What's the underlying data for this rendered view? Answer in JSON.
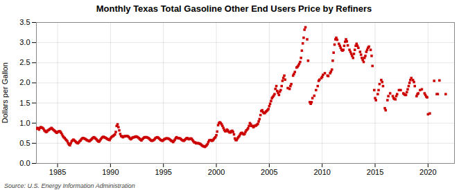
{
  "chart_data": {
    "type": "scatter",
    "title": "Monthly Texas Total Gasoline Other End Users Price by Refiners",
    "ylabel": "Dollars per Gallon",
    "caption": "Source: U.S. Energy Information Administration",
    "color": "#cc0000",
    "marker": "square",
    "grid": true,
    "xlim": [
      1983.0,
      2022.5
    ],
    "ylim": [
      0.0,
      3.5
    ],
    "xticks": [
      1985,
      1990,
      1995,
      2000,
      2005,
      2010,
      2015,
      2020
    ],
    "yticks": [
      {
        "value": 0.0,
        "label": "0.0"
      },
      0.5,
      {
        "value": 1.0,
        "label": "1.0"
      },
      1.5,
      {
        "value": 2.0,
        "label": "2.0"
      },
      2.5,
      {
        "value": 3.0,
        "label": "3.0"
      },
      3.5
    ],
    "x": [
      1983.0,
      1983.08,
      1983.17,
      1983.25,
      1983.33,
      1983.42,
      1983.5,
      1983.58,
      1983.67,
      1983.75,
      1983.83,
      1983.92,
      1984.0,
      1984.08,
      1984.17,
      1984.25,
      1984.33,
      1984.42,
      1984.5,
      1984.58,
      1984.67,
      1984.75,
      1984.83,
      1984.92,
      1985.0,
      1985.08,
      1985.17,
      1985.25,
      1985.33,
      1985.42,
      1985.5,
      1985.58,
      1985.67,
      1985.75,
      1985.83,
      1985.92,
      1986.0,
      1986.08,
      1986.17,
      1986.25,
      1986.33,
      1986.42,
      1986.5,
      1986.58,
      1986.67,
      1986.75,
      1986.83,
      1986.92,
      1987.0,
      1987.08,
      1987.17,
      1987.25,
      1987.33,
      1987.42,
      1987.5,
      1987.58,
      1987.67,
      1987.75,
      1987.83,
      1987.92,
      1988.0,
      1988.08,
      1988.17,
      1988.25,
      1988.33,
      1988.42,
      1988.5,
      1988.58,
      1988.67,
      1988.75,
      1988.83,
      1988.92,
      1989.0,
      1989.08,
      1989.17,
      1989.25,
      1989.33,
      1989.42,
      1989.5,
      1989.58,
      1989.67,
      1989.75,
      1989.83,
      1989.92,
      1990.0,
      1990.08,
      1990.17,
      1990.25,
      1990.33,
      1990.42,
      1990.5,
      1990.58,
      1990.67,
      1990.75,
      1990.83,
      1990.92,
      1991.0,
      1991.08,
      1991.17,
      1991.25,
      1991.33,
      1991.42,
      1991.5,
      1991.58,
      1991.67,
      1991.75,
      1991.83,
      1991.92,
      1992.0,
      1992.08,
      1992.17,
      1992.25,
      1992.33,
      1992.42,
      1992.5,
      1992.58,
      1992.67,
      1992.75,
      1992.83,
      1992.92,
      1993.0,
      1993.08,
      1993.17,
      1993.25,
      1993.33,
      1993.42,
      1993.5,
      1993.58,
      1993.67,
      1993.75,
      1993.83,
      1993.92,
      1994.0,
      1994.08,
      1994.17,
      1994.25,
      1994.33,
      1994.42,
      1994.5,
      1994.58,
      1994.67,
      1994.75,
      1994.83,
      1994.92,
      1995.0,
      1995.08,
      1995.17,
      1995.25,
      1995.33,
      1995.42,
      1995.5,
      1995.58,
      1995.67,
      1995.75,
      1995.83,
      1995.92,
      1996.0,
      1996.08,
      1996.17,
      1996.25,
      1996.33,
      1996.42,
      1996.5,
      1996.58,
      1996.67,
      1996.75,
      1996.83,
      1996.92,
      1997.0,
      1997.08,
      1997.17,
      1997.25,
      1997.33,
      1997.42,
      1997.5,
      1997.58,
      1997.67,
      1997.75,
      1997.83,
      1997.92,
      1998.0,
      1998.08,
      1998.17,
      1998.25,
      1998.33,
      1998.42,
      1998.5,
      1998.58,
      1998.67,
      1998.75,
      1998.83,
      1998.92,
      1999.0,
      1999.08,
      1999.17,
      1999.25,
      1999.33,
      1999.42,
      1999.5,
      1999.58,
      1999.67,
      1999.75,
      1999.83,
      1999.92,
      2000.0,
      2000.08,
      2000.17,
      2000.25,
      2000.33,
      2000.42,
      2000.5,
      2000.58,
      2000.67,
      2000.75,
      2000.83,
      2000.92,
      2001.0,
      2001.08,
      2001.17,
      2001.25,
      2001.33,
      2001.42,
      2001.5,
      2001.58,
      2001.67,
      2001.75,
      2001.83,
      2001.92,
      2002.0,
      2002.08,
      2002.17,
      2002.25,
      2002.33,
      2002.42,
      2002.5,
      2002.58,
      2002.67,
      2002.75,
      2002.83,
      2002.92,
      2003.0,
      2003.08,
      2003.17,
      2003.25,
      2003.33,
      2003.42,
      2003.5,
      2003.58,
      2003.67,
      2003.75,
      2003.83,
      2003.92,
      2004.0,
      2004.08,
      2004.17,
      2004.25,
      2004.33,
      2004.42,
      2004.5,
      2004.58,
      2004.67,
      2004.75,
      2004.83,
      2004.92,
      2005.0,
      2005.08,
      2005.17,
      2005.25,
      2005.33,
      2005.42,
      2005.5,
      2005.58,
      2005.67,
      2005.75,
      2005.83,
      2005.92,
      2006.0,
      2006.08,
      2006.17,
      2006.25,
      2006.33,
      2006.42,
      2006.5,
      2006.75,
      2006.92,
      2007.0,
      2007.08,
      2007.25,
      2007.33,
      2007.42,
      2007.58,
      2007.67,
      2007.75,
      2007.83,
      2007.92,
      2008.0,
      2008.08,
      2008.17,
      2008.25,
      2008.33,
      2008.42,
      2008.58,
      2008.67,
      2008.83,
      2008.92,
      2009.0,
      2009.08,
      2009.25,
      2009.42,
      2009.58,
      2009.67,
      2009.75,
      2009.92,
      2010.0,
      2010.08,
      2010.25,
      2010.5,
      2010.58,
      2010.75,
      2010.83,
      2010.92,
      2011.0,
      2011.08,
      2011.17,
      2011.25,
      2011.33,
      2011.42,
      2011.58,
      2011.67,
      2011.75,
      2011.83,
      2011.92,
      2012.0,
      2012.08,
      2012.17,
      2012.25,
      2012.33,
      2012.42,
      2012.58,
      2012.67,
      2012.75,
      2012.83,
      2012.92,
      2013.0,
      2013.08,
      2013.17,
      2013.25,
      2013.33,
      2013.42,
      2013.58,
      2013.67,
      2013.75,
      2013.83,
      2013.92,
      2014.0,
      2014.08,
      2014.17,
      2014.25,
      2014.33,
      2014.42,
      2014.58,
      2014.67,
      2014.75,
      2014.92,
      2015.0,
      2015.08,
      2015.25,
      2015.33,
      2015.42,
      2015.58,
      2015.67,
      2015.75,
      2015.92,
      2016.0,
      2016.17,
      2016.25,
      2016.42,
      2016.67,
      2016.75,
      2016.83,
      2016.92,
      2017.0,
      2017.08,
      2017.25,
      2017.42,
      2017.67,
      2017.75,
      2017.83,
      2017.92,
      2018.0,
      2018.08,
      2018.17,
      2018.25,
      2018.33,
      2018.42,
      2018.58,
      2018.67,
      2018.75,
      2018.92,
      2019.0,
      2019.08,
      2019.25,
      2019.42,
      2019.67,
      2019.75,
      2019.83,
      2019.92,
      2020.0,
      2020.17,
      2020.58,
      2020.83,
      2020.92,
      2021.08,
      2021.67
    ],
    "values": [
      0.86,
      0.88,
      0.87,
      0.84,
      0.88,
      0.9,
      0.89,
      0.88,
      0.86,
      0.82,
      0.8,
      0.78,
      0.79,
      0.82,
      0.83,
      0.85,
      0.86,
      0.88,
      0.86,
      0.84,
      0.82,
      0.8,
      0.78,
      0.76,
      0.78,
      0.79,
      0.8,
      0.79,
      0.76,
      0.72,
      0.68,
      0.65,
      0.63,
      0.6,
      0.58,
      0.55,
      0.5,
      0.47,
      0.45,
      0.5,
      0.55,
      0.57,
      0.59,
      0.57,
      0.55,
      0.53,
      0.51,
      0.5,
      0.52,
      0.55,
      0.57,
      0.6,
      0.62,
      0.63,
      0.62,
      0.61,
      0.6,
      0.58,
      0.57,
      0.56,
      0.55,
      0.57,
      0.59,
      0.61,
      0.63,
      0.65,
      0.64,
      0.62,
      0.6,
      0.57,
      0.55,
      0.54,
      0.57,
      0.6,
      0.63,
      0.65,
      0.66,
      0.65,
      0.64,
      0.63,
      0.61,
      0.6,
      0.59,
      0.58,
      0.62,
      0.65,
      0.67,
      0.68,
      0.7,
      0.72,
      0.78,
      0.93,
      0.97,
      0.9,
      0.82,
      0.73,
      0.68,
      0.67,
      0.65,
      0.67,
      0.67,
      0.68,
      0.68,
      0.68,
      0.67,
      0.65,
      0.62,
      0.6,
      0.62,
      0.64,
      0.65,
      0.65,
      0.66,
      0.67,
      0.66,
      0.65,
      0.63,
      0.61,
      0.59,
      0.57,
      0.6,
      0.62,
      0.64,
      0.65,
      0.65,
      0.65,
      0.64,
      0.63,
      0.61,
      0.59,
      0.57,
      0.56,
      0.57,
      0.58,
      0.6,
      0.63,
      0.64,
      0.65,
      0.64,
      0.62,
      0.6,
      0.58,
      0.57,
      0.56,
      0.58,
      0.6,
      0.61,
      0.62,
      0.62,
      0.62,
      0.61,
      0.6,
      0.58,
      0.56,
      0.55,
      0.53,
      0.56,
      0.59,
      0.63,
      0.65,
      0.63,
      0.63,
      0.62,
      0.62,
      0.6,
      0.58,
      0.57,
      0.56,
      0.58,
      0.6,
      0.62,
      0.63,
      0.61,
      0.6,
      0.61,
      0.62,
      0.61,
      0.58,
      0.55,
      0.52,
      0.52,
      0.5,
      0.5,
      0.5,
      0.5,
      0.49,
      0.48,
      0.46,
      0.44,
      0.43,
      0.42,
      0.41,
      0.43,
      0.45,
      0.48,
      0.53,
      0.57,
      0.58,
      0.58,
      0.56,
      0.57,
      0.6,
      0.63,
      0.65,
      0.7,
      0.79,
      0.95,
      1.0,
      1.02,
      1.0,
      0.97,
      0.93,
      0.88,
      0.83,
      0.8,
      0.8,
      0.84,
      0.82,
      0.79,
      0.77,
      0.77,
      0.8,
      0.81,
      0.78,
      0.72,
      0.62,
      0.58,
      0.58,
      0.62,
      0.65,
      0.68,
      0.72,
      0.75,
      0.76,
      0.74,
      0.72,
      0.73,
      0.78,
      0.82,
      0.84,
      0.87,
      0.93,
      1.0,
      0.97,
      0.93,
      0.93,
      0.9,
      0.92,
      0.94,
      0.94,
      0.96,
      0.98,
      1.04,
      1.1,
      1.2,
      1.3,
      1.32,
      1.27,
      1.25,
      1.25,
      1.28,
      1.3,
      1.32,
      1.35,
      1.42,
      1.48,
      1.55,
      1.62,
      1.65,
      1.68,
      1.72,
      1.85,
      1.92,
      1.8,
      1.75,
      1.7,
      1.78,
      1.82,
      1.92,
      2.05,
      2.12,
      2.18,
      2.08,
      1.87,
      1.85,
      1.92,
      1.97,
      2.18,
      2.22,
      2.27,
      2.38,
      2.4,
      2.43,
      2.47,
      2.52,
      2.62,
      2.8,
      2.98,
      3.12,
      3.32,
      3.38,
      3.08,
      2.55,
      1.52,
      1.48,
      1.52,
      1.62,
      1.68,
      1.82,
      1.92,
      2.05,
      2.08,
      2.12,
      2.15,
      2.2,
      2.24,
      2.18,
      2.17,
      2.24,
      2.28,
      2.33,
      2.55,
      2.75,
      2.95,
      3.08,
      3.12,
      3.07,
      2.97,
      2.92,
      2.87,
      2.82,
      2.8,
      2.82,
      2.92,
      3.02,
      3.08,
      3.03,
      2.93,
      2.82,
      2.77,
      2.72,
      2.67,
      2.62,
      2.72,
      2.82,
      2.92,
      2.97,
      2.92,
      2.87,
      2.77,
      2.7,
      2.62,
      2.57,
      2.52,
      2.62,
      2.67,
      2.77,
      2.82,
      2.87,
      2.9,
      2.82,
      2.67,
      2.42,
      1.82,
      1.62,
      1.57,
      1.72,
      1.82,
      1.97,
      2.07,
      2.02,
      1.92,
      1.37,
      1.32,
      1.57,
      1.67,
      1.74,
      1.67,
      1.62,
      1.6,
      1.59,
      1.67,
      1.72,
      1.82,
      1.82,
      1.74,
      1.72,
      1.7,
      1.7,
      1.77,
      1.84,
      1.92,
      2.0,
      2.07,
      2.12,
      2.07,
      2.02,
      1.92,
      1.67,
      1.72,
      1.74,
      1.82,
      1.84,
      1.74,
      1.7,
      1.66,
      1.64,
      1.22,
      1.24,
      2.05,
      1.72,
      1.72,
      2.06,
      1.72
    ]
  }
}
